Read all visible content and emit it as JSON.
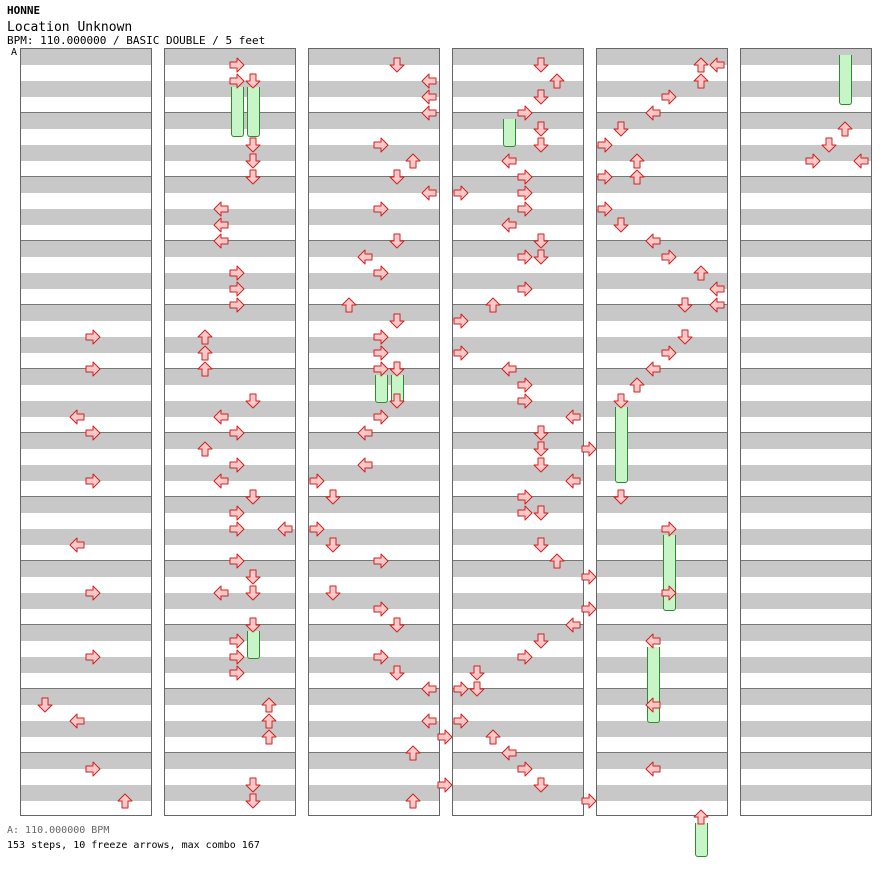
{
  "header": {
    "artist": "HONNE",
    "song": "Location Unknown",
    "meta": "BPM: 110.000000 / BASIC DOUBLE / 5 feet",
    "bpm_marker": "A"
  },
  "footer": {
    "bpm_line": "A: 110.000000 BPM",
    "stats": "153 steps, 10 freeze arrows, max combo 167"
  },
  "colors": {
    "arrow_fill": "#ffc8c8",
    "arrow_stroke": "#cc2222",
    "freeze_fill": "#c8f5c8",
    "freeze_stroke": "#2e8b2e",
    "row_dark": "#c8c8c8"
  },
  "chart_data": {
    "type": "step-chart",
    "lanes": [
      "P1-left",
      "P1-down",
      "P1-up",
      "P1-right",
      "P2-left",
      "P2-down",
      "P2-up",
      "P2-right"
    ],
    "beats_per_column": 24,
    "columns": [
      {
        "arrows": [
          [
            9.0,
            4
          ],
          [
            10.0,
            4
          ],
          [
            11.5,
            3
          ],
          [
            12.0,
            4
          ],
          [
            13.5,
            4
          ],
          [
            15.5,
            3
          ],
          [
            17.0,
            4
          ],
          [
            19.0,
            4
          ],
          [
            20.5,
            1
          ],
          [
            21.0,
            3
          ],
          [
            22.5,
            4
          ],
          [
            23.5,
            6
          ]
        ],
        "freezes": []
      },
      {
        "arrows": [
          [
            0.5,
            4
          ],
          [
            1.0,
            4
          ],
          [
            1.0,
            5
          ],
          [
            3.0,
            5
          ],
          [
            3.5,
            5
          ],
          [
            4.0,
            5
          ],
          [
            5.0,
            3
          ],
          [
            5.5,
            3
          ],
          [
            6.0,
            3
          ],
          [
            7.0,
            4
          ],
          [
            7.5,
            4
          ],
          [
            8.0,
            4
          ],
          [
            9.0,
            2
          ],
          [
            9.5,
            2
          ],
          [
            10.0,
            2
          ],
          [
            11.0,
            5
          ],
          [
            11.5,
            3
          ],
          [
            12.0,
            4
          ],
          [
            12.5,
            2
          ],
          [
            13.0,
            4
          ],
          [
            13.5,
            3
          ],
          [
            14.0,
            5
          ],
          [
            14.5,
            4
          ],
          [
            15.0,
            4
          ],
          [
            15.0,
            7
          ],
          [
            16.0,
            4
          ],
          [
            16.5,
            5
          ],
          [
            17.0,
            3
          ],
          [
            17.0,
            5
          ],
          [
            18.0,
            5
          ],
          [
            18.5,
            4
          ],
          [
            19.0,
            4
          ],
          [
            19.5,
            4
          ],
          [
            20.5,
            6
          ],
          [
            21.0,
            6
          ],
          [
            21.5,
            6
          ],
          [
            23.0,
            5
          ],
          [
            23.5,
            5
          ]
        ],
        "freezes": [
          [
            1.0,
            4,
            2.5
          ],
          [
            1.0,
            5,
            2.5
          ],
          [
            18.0,
            5,
            18.8
          ]
        ]
      },
      {
        "arrows": [
          [
            0.5,
            5
          ],
          [
            1.0,
            7
          ],
          [
            1.5,
            7
          ],
          [
            2.0,
            7
          ],
          [
            3.0,
            4
          ],
          [
            3.5,
            6
          ],
          [
            4.0,
            5
          ],
          [
            4.5,
            7
          ],
          [
            5.0,
            4
          ],
          [
            6.0,
            5
          ],
          [
            6.5,
            3
          ],
          [
            7.0,
            4
          ],
          [
            8.0,
            2
          ],
          [
            8.5,
            5
          ],
          [
            9.0,
            4
          ],
          [
            9.5,
            4
          ],
          [
            10.0,
            4
          ],
          [
            10.0,
            5
          ],
          [
            11.0,
            5
          ],
          [
            11.5,
            4
          ],
          [
            12.0,
            3
          ],
          [
            13.0,
            3
          ],
          [
            13.5,
            0
          ],
          [
            14.0,
            1
          ],
          [
            15.0,
            0
          ],
          [
            15.5,
            1
          ],
          [
            16.0,
            4
          ],
          [
            17.0,
            1
          ],
          [
            17.5,
            4
          ],
          [
            18.0,
            5
          ],
          [
            19.0,
            4
          ],
          [
            19.5,
            5
          ],
          [
            20.0,
            7
          ],
          [
            21.0,
            7
          ],
          [
            21.5,
            8
          ],
          [
            22.0,
            6
          ],
          [
            23.0,
            8
          ],
          [
            23.5,
            6
          ]
        ],
        "freezes": [
          [
            10.0,
            4,
            10.8
          ],
          [
            10.0,
            5,
            10.8
          ]
        ]
      },
      {
        "arrows": [
          [
            0.5,
            5
          ],
          [
            1.0,
            6
          ],
          [
            1.5,
            5
          ],
          [
            2.0,
            4
          ],
          [
            2.5,
            5
          ],
          [
            3.0,
            5
          ],
          [
            3.5,
            3
          ],
          [
            4.0,
            4
          ],
          [
            4.5,
            0
          ],
          [
            4.5,
            4
          ],
          [
            5.0,
            4
          ],
          [
            5.5,
            3
          ],
          [
            6.0,
            5
          ],
          [
            6.5,
            4
          ],
          [
            6.5,
            5
          ],
          [
            7.5,
            4
          ],
          [
            8.0,
            2
          ],
          [
            8.5,
            0
          ],
          [
            9.5,
            0
          ],
          [
            10.0,
            3
          ],
          [
            10.5,
            4
          ],
          [
            11.0,
            4
          ],
          [
            11.5,
            7
          ],
          [
            12.0,
            5
          ],
          [
            12.5,
            5
          ],
          [
            12.5,
            8
          ],
          [
            13.0,
            5
          ],
          [
            13.5,
            7
          ],
          [
            14.0,
            4
          ],
          [
            14.5,
            4
          ],
          [
            14.5,
            5
          ],
          [
            15.5,
            5
          ],
          [
            16.0,
            6
          ],
          [
            16.5,
            8
          ],
          [
            17.5,
            8
          ],
          [
            18.0,
            7
          ],
          [
            18.5,
            5
          ],
          [
            19.0,
            4
          ],
          [
            19.5,
            1
          ],
          [
            20.0,
            0
          ],
          [
            20.0,
            1
          ],
          [
            21.0,
            0
          ],
          [
            21.5,
            2
          ],
          [
            22.0,
            3
          ],
          [
            22.5,
            4
          ],
          [
            23.0,
            5
          ],
          [
            23.5,
            8
          ]
        ],
        "freezes": [
          [
            2.0,
            3,
            2.8
          ]
        ]
      },
      {
        "arrows": [
          [
            0.5,
            6
          ],
          [
            0.5,
            7
          ],
          [
            1.0,
            6
          ],
          [
            1.5,
            4
          ],
          [
            2.0,
            3
          ],
          [
            2.5,
            1
          ],
          [
            3.0,
            0
          ],
          [
            3.5,
            2
          ],
          [
            4.0,
            0
          ],
          [
            4.0,
            2
          ],
          [
            5.0,
            0
          ],
          [
            5.5,
            1
          ],
          [
            6.0,
            3
          ],
          [
            6.5,
            4
          ],
          [
            7.0,
            6
          ],
          [
            7.5,
            7
          ],
          [
            8.0,
            5
          ],
          [
            8.0,
            7
          ],
          [
            9.0,
            5
          ],
          [
            9.5,
            4
          ],
          [
            10.0,
            3
          ],
          [
            10.5,
            2
          ],
          [
            11.0,
            1
          ],
          [
            14.0,
            1
          ],
          [
            15.0,
            4
          ],
          [
            17.0,
            4
          ],
          [
            18.5,
            3
          ],
          [
            20.5,
            3
          ],
          [
            22.5,
            3
          ],
          [
            24.0,
            6
          ]
        ],
        "freezes": [
          [
            11.0,
            1,
            13.3
          ],
          [
            15.0,
            4,
            17.3
          ],
          [
            18.5,
            3,
            20.8
          ],
          [
            24.0,
            6,
            25.0
          ]
        ]
      },
      {
        "arrows": [
          [
            2.5,
            6
          ],
          [
            3.0,
            5
          ],
          [
            3.5,
            4
          ],
          [
            3.5,
            7
          ]
        ],
        "freezes": [
          [
            0.0,
            6,
            1.5
          ]
        ]
      }
    ]
  }
}
